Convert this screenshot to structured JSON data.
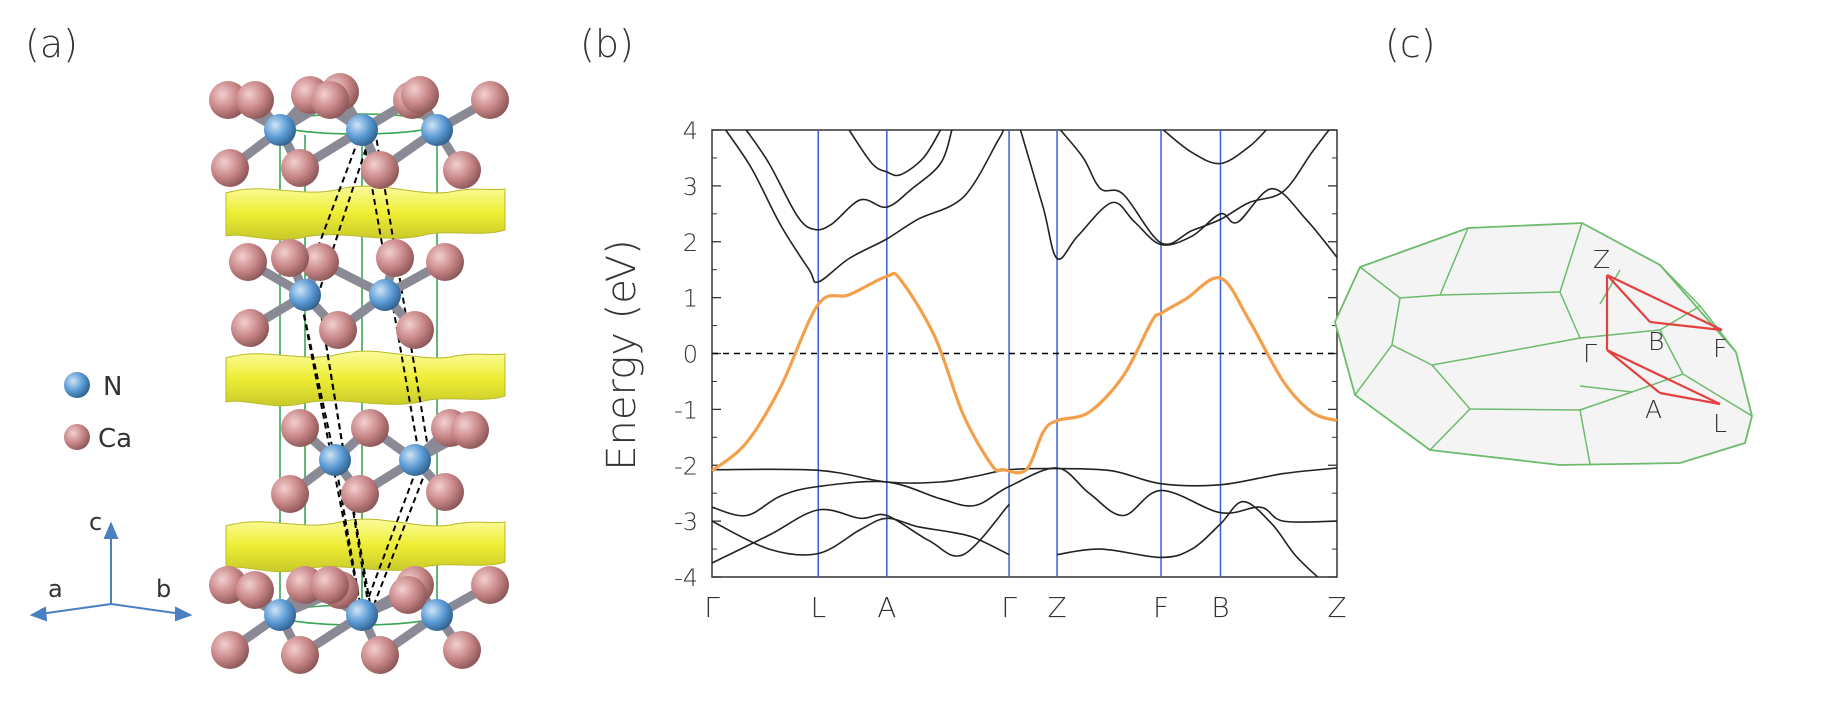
{
  "panels": {
    "a": {
      "label": "(a)"
    },
    "b": {
      "label": "(b)"
    },
    "c": {
      "label": "(c)"
    }
  },
  "structure": {
    "legend": [
      {
        "element": "N",
        "color": "#5b9bd5"
      },
      {
        "element": "Ca",
        "color": "#c98788"
      }
    ],
    "axes": {
      "a": "a",
      "b": "b",
      "c": "c"
    },
    "colors": {
      "slab": "#f2f23a",
      "cell": "#3aa655",
      "primitive": "#000000"
    }
  },
  "chart_data": {
    "type": "line",
    "ylabel": "Energy (eV)",
    "ylim": [
      -4,
      4
    ],
    "yticks": [
      "4",
      "3",
      "2",
      "1",
      "0",
      "-1",
      "-2",
      "-3",
      "-4"
    ],
    "high_symmetry": [
      {
        "label": "Γ",
        "x": 0.0
      },
      {
        "label": "L",
        "x": 0.93
      },
      {
        "label": "A",
        "x": 1.53
      },
      {
        "label": "Γ",
        "x": 2.6
      },
      {
        "label": "Z",
        "x": 3.02
      },
      {
        "label": "F",
        "x": 3.93
      },
      {
        "label": "B",
        "x": 4.45
      },
      {
        "label": "Z",
        "x": 5.47
      }
    ],
    "xlim": [
      0,
      5.47
    ],
    "fermi_level": 0,
    "colors": {
      "highlight": "#f4a04a",
      "bands": "#222222",
      "kpath": "#3a5fd6",
      "fermi": "#000000"
    },
    "series": [
      {
        "highlight": true,
        "points": [
          [
            0,
            -2.1
          ],
          [
            0.3,
            -1.6
          ],
          [
            0.6,
            -0.6
          ],
          [
            0.93,
            0.88
          ],
          [
            1.2,
            1.05
          ],
          [
            1.53,
            1.38
          ],
          [
            1.65,
            1.32
          ],
          [
            1.95,
            0.3
          ],
          [
            2.2,
            -1.1
          ],
          [
            2.45,
            -2.0
          ],
          [
            2.55,
            -2.08
          ],
          [
            2.75,
            -2.08
          ],
          [
            2.9,
            -1.4
          ],
          [
            3.02,
            -1.2
          ],
          [
            3.3,
            -1.05
          ],
          [
            3.6,
            -0.4
          ],
          [
            3.85,
            0.58
          ],
          [
            3.93,
            0.72
          ],
          [
            4.15,
            0.98
          ],
          [
            4.45,
            1.35
          ],
          [
            4.7,
            0.6
          ],
          [
            5.0,
            -0.5
          ],
          [
            5.25,
            -1.05
          ],
          [
            5.47,
            -1.2
          ]
        ]
      },
      {
        "highlight": false,
        "points": [
          [
            0.3,
            4.0
          ],
          [
            0.5,
            3.4
          ],
          [
            0.75,
            2.45
          ],
          [
            0.9,
            2.22
          ],
          [
            1.05,
            2.32
          ],
          [
            1.3,
            2.75
          ],
          [
            1.53,
            2.62
          ],
          [
            1.75,
            2.95
          ],
          [
            2.0,
            3.4
          ],
          [
            2.1,
            4.0
          ]
        ]
      },
      {
        "highlight": false,
        "points": [
          [
            0.12,
            4.0
          ],
          [
            0.35,
            3.3
          ],
          [
            0.6,
            2.3
          ],
          [
            0.85,
            1.5
          ],
          [
            0.93,
            1.28
          ],
          [
            1.2,
            1.7
          ],
          [
            1.53,
            2.05
          ],
          [
            1.8,
            2.4
          ],
          [
            2.2,
            2.8
          ],
          [
            2.5,
            3.8
          ],
          [
            2.55,
            4.0
          ]
        ]
      },
      {
        "highlight": false,
        "points": [
          [
            1.2,
            4.0
          ],
          [
            1.4,
            3.4
          ],
          [
            1.53,
            3.25
          ],
          [
            1.65,
            3.2
          ],
          [
            1.85,
            3.5
          ],
          [
            2.0,
            4.0
          ]
        ]
      },
      {
        "highlight": false,
        "points": [
          [
            2.7,
            4.0
          ],
          [
            2.9,
            2.6
          ],
          [
            3.02,
            1.7
          ],
          [
            3.2,
            2.1
          ],
          [
            3.5,
            2.7
          ],
          [
            3.7,
            2.35
          ],
          [
            3.93,
            1.95
          ],
          [
            4.2,
            2.1
          ],
          [
            4.45,
            2.5
          ],
          [
            4.6,
            2.35
          ],
          [
            4.9,
            2.95
          ],
          [
            5.2,
            2.4
          ],
          [
            5.47,
            1.72
          ]
        ]
      },
      {
        "highlight": false,
        "points": [
          [
            3.05,
            4.0
          ],
          [
            3.25,
            3.5
          ],
          [
            3.4,
            2.95
          ],
          [
            3.6,
            2.85
          ],
          [
            3.93,
            1.98
          ],
          [
            4.2,
            2.2
          ],
          [
            4.45,
            2.4
          ],
          [
            4.7,
            2.7
          ],
          [
            5.0,
            2.9
          ],
          [
            5.25,
            3.6
          ],
          [
            5.4,
            4.0
          ]
        ]
      },
      {
        "highlight": false,
        "points": [
          [
            3.95,
            4.0
          ],
          [
            4.2,
            3.6
          ],
          [
            4.45,
            3.4
          ],
          [
            4.7,
            3.7
          ],
          [
            4.85,
            4.0
          ]
        ]
      },
      {
        "highlight": false,
        "points": [
          [
            0,
            -2.08
          ],
          [
            0.93,
            -2.09
          ],
          [
            1.53,
            -2.3
          ],
          [
            2.0,
            -2.3
          ],
          [
            2.3,
            -2.2
          ],
          [
            2.6,
            -2.08
          ],
          [
            3.02,
            -2.06
          ],
          [
            3.5,
            -2.1
          ],
          [
            3.93,
            -2.33
          ],
          [
            4.45,
            -2.35
          ],
          [
            5.0,
            -2.15
          ],
          [
            5.47,
            -2.05
          ]
        ]
      },
      {
        "highlight": false,
        "points": [
          [
            0,
            -2.75
          ],
          [
            0.3,
            -2.9
          ],
          [
            0.6,
            -2.55
          ],
          [
            0.93,
            -2.38
          ],
          [
            1.53,
            -2.3
          ],
          [
            2.0,
            -2.6
          ],
          [
            2.3,
            -2.72
          ],
          [
            2.6,
            -2.38
          ],
          [
            3.02,
            -2.05
          ],
          [
            3.3,
            -2.5
          ],
          [
            3.6,
            -2.9
          ],
          [
            3.93,
            -2.45
          ],
          [
            4.45,
            -2.85
          ],
          [
            4.8,
            -2.75
          ],
          [
            5.0,
            -3.0
          ],
          [
            5.47,
            -3.0
          ]
        ]
      },
      {
        "highlight": false,
        "points": [
          [
            0,
            -3.0
          ],
          [
            0.5,
            -3.5
          ],
          [
            0.93,
            -3.58
          ],
          [
            1.3,
            -3.15
          ],
          [
            1.53,
            -2.95
          ],
          [
            1.8,
            -3.1
          ],
          [
            2.1,
            -3.2
          ],
          [
            2.3,
            -3.3
          ],
          [
            2.6,
            -3.6
          ]
        ]
      },
      {
        "highlight": false,
        "points": [
          [
            0,
            -3.75
          ],
          [
            0.5,
            -3.25
          ],
          [
            0.93,
            -2.8
          ],
          [
            1.3,
            -2.95
          ],
          [
            1.53,
            -2.9
          ],
          [
            1.9,
            -3.35
          ],
          [
            2.2,
            -3.6
          ],
          [
            2.6,
            -2.7
          ]
        ]
      },
      {
        "highlight": false,
        "points": [
          [
            3.02,
            -3.6
          ],
          [
            3.4,
            -3.5
          ],
          [
            3.93,
            -3.65
          ],
          [
            4.2,
            -3.5
          ],
          [
            4.45,
            -3.05
          ],
          [
            4.65,
            -2.65
          ],
          [
            4.9,
            -3.05
          ],
          [
            5.1,
            -3.6
          ],
          [
            5.3,
            -4.0
          ]
        ]
      }
    ]
  },
  "brillouin_zone": {
    "points": [
      {
        "label": "Z"
      },
      {
        "label": "B"
      },
      {
        "label": "F"
      },
      {
        "label": "Γ"
      },
      {
        "label": "A"
      },
      {
        "label": "L"
      }
    ],
    "colors": {
      "zone": "#6dbb6d",
      "fill": "#f4f4f4",
      "path": "#e54040"
    }
  }
}
